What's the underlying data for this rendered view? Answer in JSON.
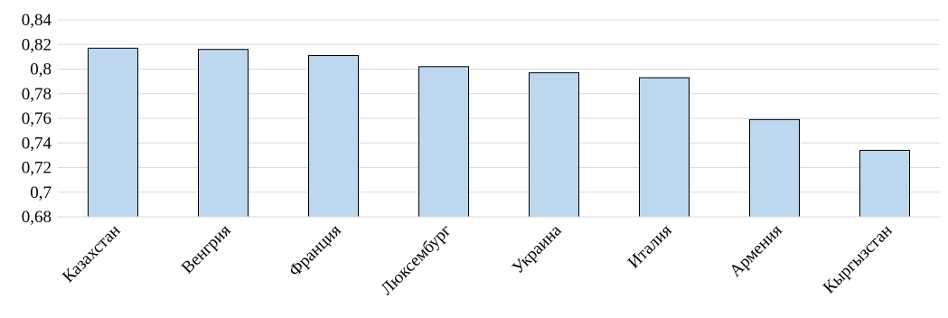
{
  "chart_data": {
    "type": "bar",
    "title": "",
    "xlabel": "",
    "ylabel": "",
    "categories": [
      "Казахстан",
      "Венгрия",
      "Франция",
      "Люксембург",
      "Украина",
      "Италия",
      "Армения",
      "Кыргызстан"
    ],
    "values": [
      0.817,
      0.816,
      0.811,
      0.802,
      0.797,
      0.793,
      0.759,
      0.734
    ],
    "ylim": [
      0.68,
      0.84
    ],
    "yticks": [
      "0,68",
      "0,7",
      "0,72",
      "0,74",
      "0,76",
      "0,78",
      "0,8",
      "0,82",
      "0,84"
    ],
    "grid": true,
    "legend": "none",
    "bar_color": "#bdd7ee",
    "bar_edge_color": "#000000",
    "grid_color": "#d9d9d9"
  }
}
